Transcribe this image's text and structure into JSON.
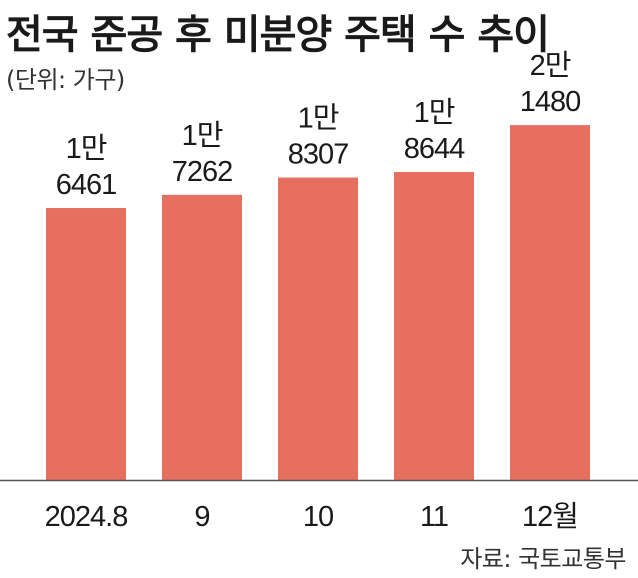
{
  "title": "전국 준공 후 미분양 주택 수 추이",
  "unit": "(단위: 가구)",
  "source": "자료: 국토교통부",
  "colors": {
    "bar": "#e66f60",
    "baseline": "#555555"
  },
  "chart_data": {
    "type": "bar",
    "title": "전국 준공 후 미분양 주택 수 추이",
    "categories": [
      "2024.8",
      "9",
      "10",
      "11",
      "12월"
    ],
    "values": [
      16461,
      17262,
      18307,
      18644,
      21480
    ],
    "labels": [
      [
        "1만",
        "6461"
      ],
      [
        "1만",
        "7262"
      ],
      [
        "1만",
        "8307"
      ],
      [
        "1만",
        "8644"
      ],
      [
        "2만",
        "1480"
      ]
    ],
    "ylim": [
      0,
      23000
    ],
    "grid": false,
    "legend": "none"
  }
}
